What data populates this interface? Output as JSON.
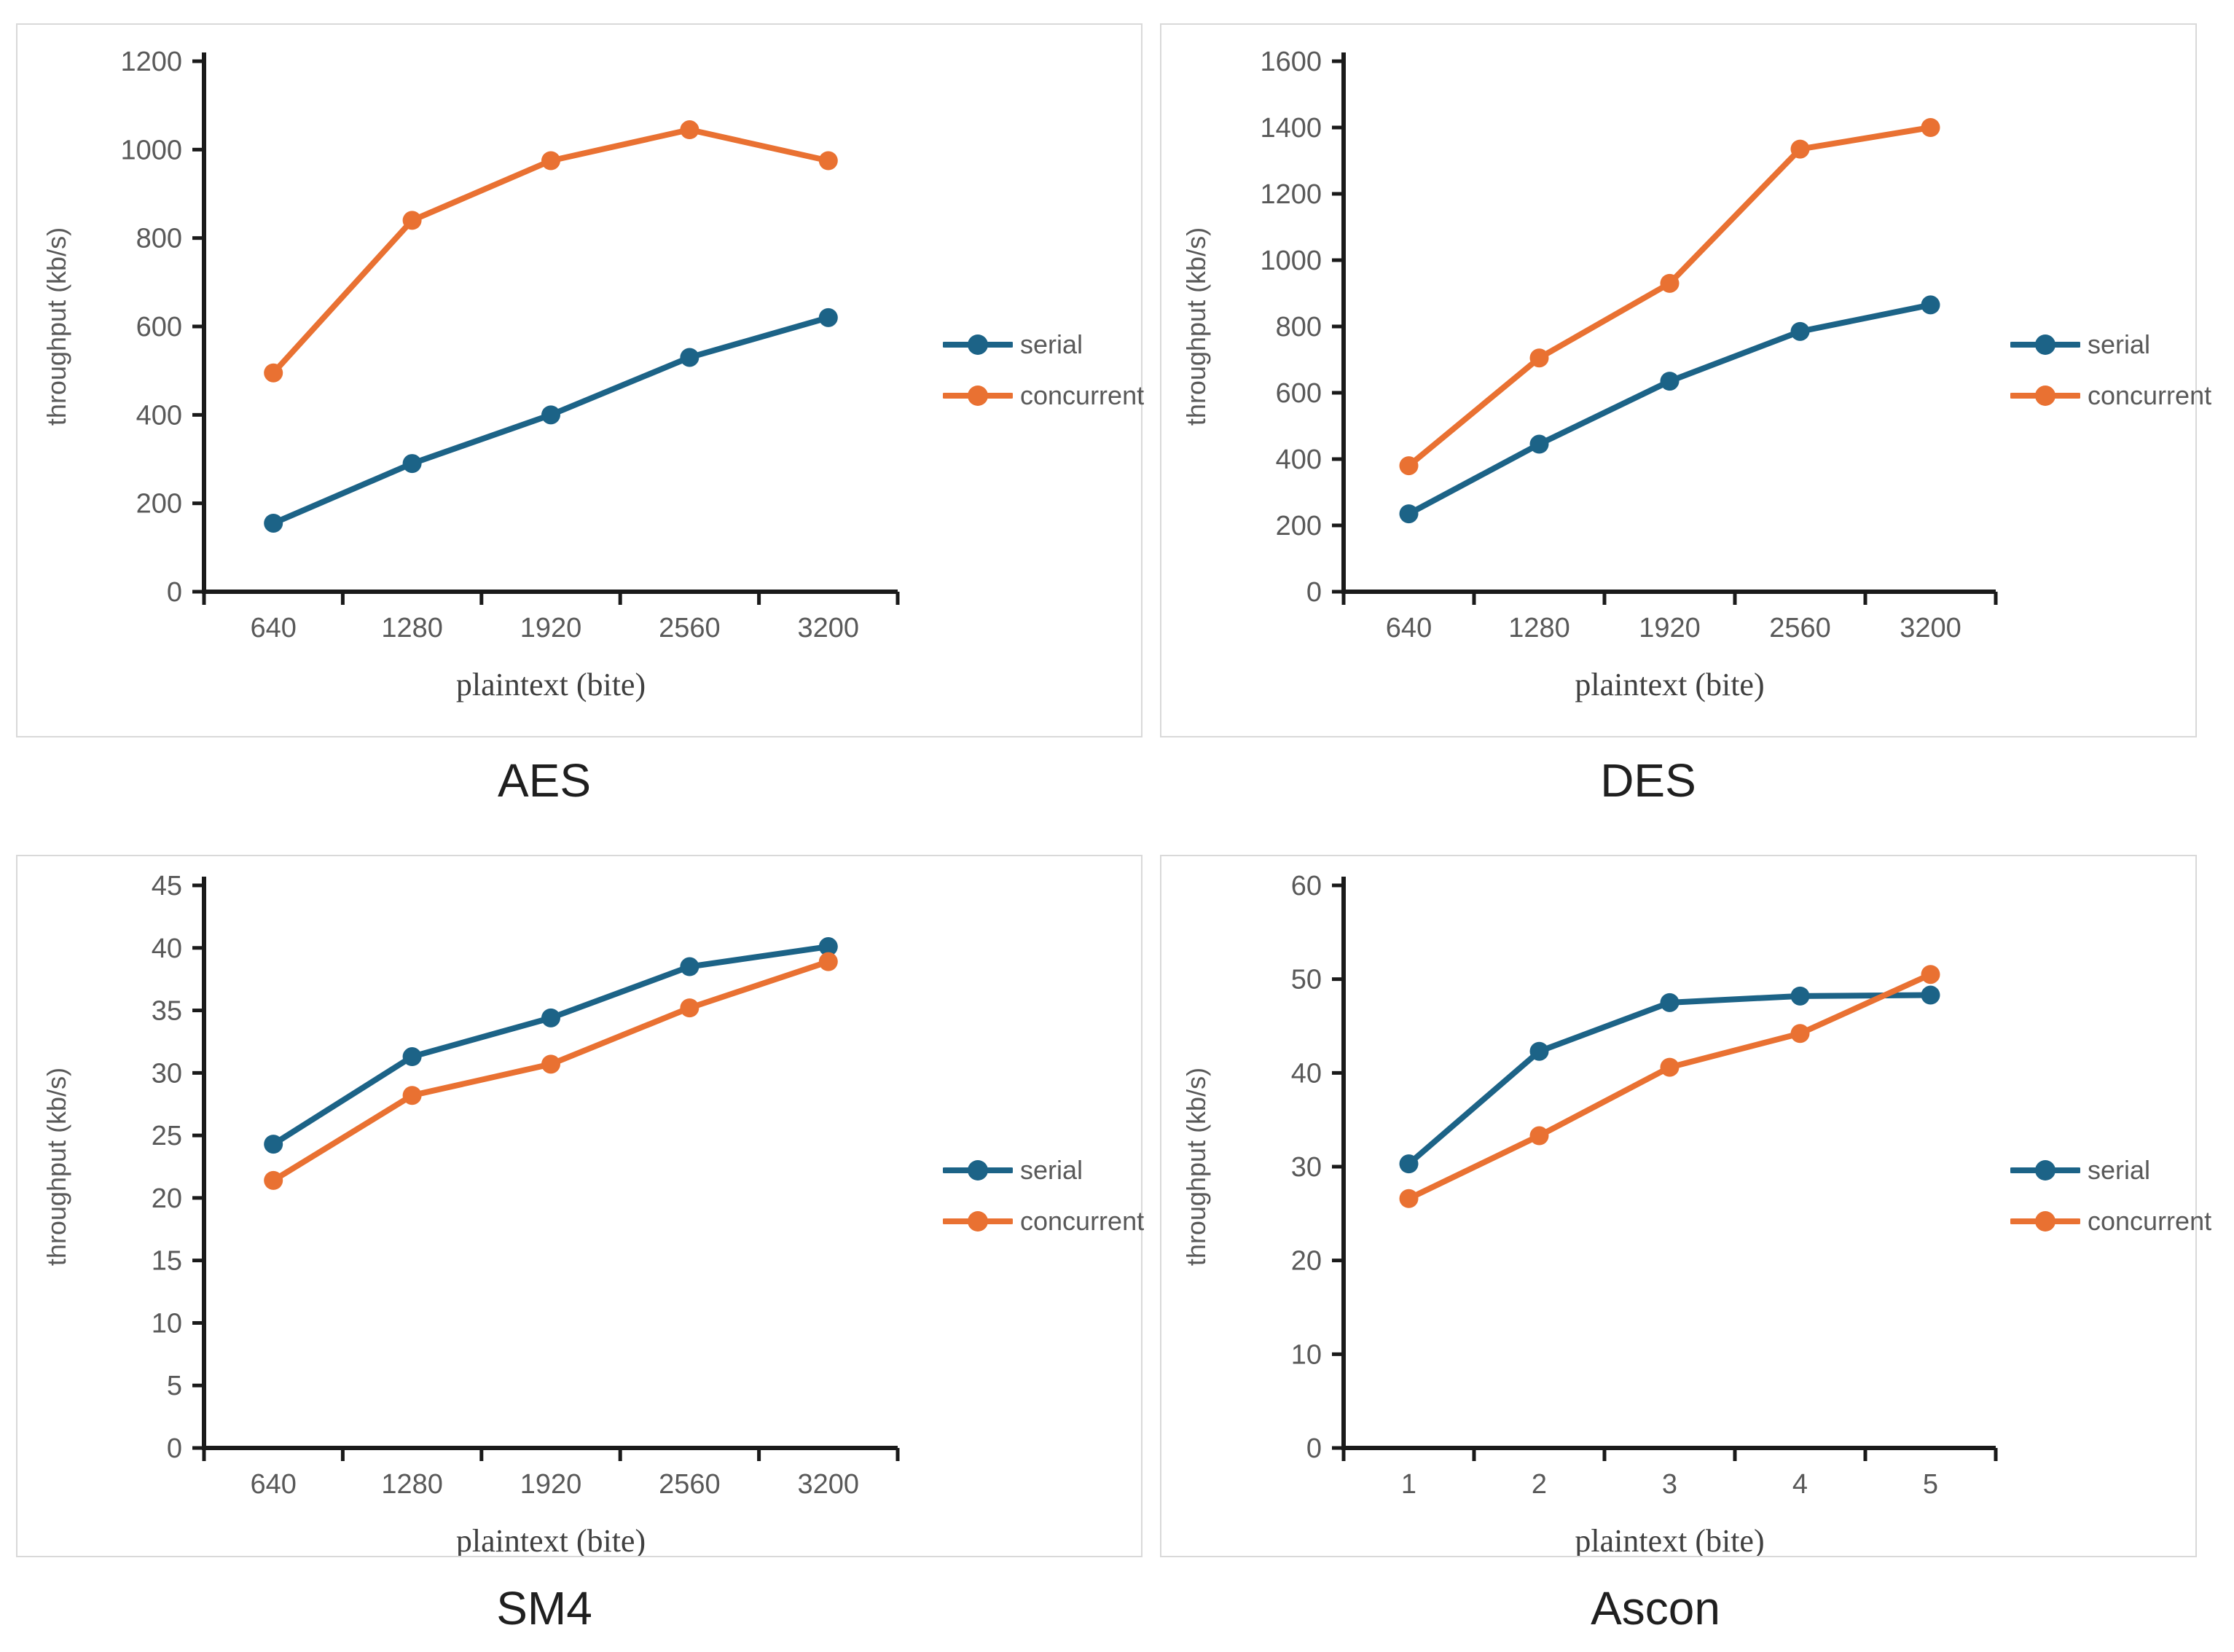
{
  "page": {
    "background": "#ffffff",
    "panel_border_color": "#d9d9d9"
  },
  "colors": {
    "serial": "#1C6387",
    "concurrent": "#E97132",
    "axis": "#1a1a1a",
    "tick_text": "#595959",
    "title_text": "#1f1f1f"
  },
  "chart_data": [
    {
      "type": "line",
      "title": "AES",
      "xlabel": "plaintext (bite)",
      "ylabel": "throughput (kb/s)",
      "categories": [
        "640",
        "1280",
        "1920",
        "2560",
        "3200"
      ],
      "ylim": [
        0,
        1200
      ],
      "ystep": 200,
      "grid": false,
      "legend_position": "right",
      "series": [
        {
          "name": "serial",
          "color": "#1C6387",
          "values": [
            155,
            290,
            400,
            530,
            620
          ]
        },
        {
          "name": "concurrent",
          "color": "#E97132",
          "values": [
            495,
            840,
            975,
            1045,
            975
          ]
        }
      ]
    },
    {
      "type": "line",
      "title": "DES",
      "xlabel": "plaintext (bite)",
      "ylabel": "throughput (kb/s)",
      "categories": [
        "640",
        "1280",
        "1920",
        "2560",
        "3200"
      ],
      "ylim": [
        0,
        1600
      ],
      "ystep": 200,
      "grid": false,
      "legend_position": "right",
      "series": [
        {
          "name": "serial",
          "color": "#1C6387",
          "values": [
            235,
            445,
            635,
            785,
            865
          ]
        },
        {
          "name": "concurrent",
          "color": "#E97132",
          "values": [
            380,
            705,
            930,
            1335,
            1400
          ]
        }
      ]
    },
    {
      "type": "line",
      "title": "SM4",
      "xlabel": "plaintext (bite)",
      "ylabel": "throughput (kb/s)",
      "categories": [
        "640",
        "1280",
        "1920",
        "2560",
        "3200"
      ],
      "ylim": [
        0,
        45
      ],
      "ystep": 5,
      "grid": false,
      "legend_position": "right",
      "series": [
        {
          "name": "serial",
          "color": "#1C6387",
          "values": [
            24.3,
            31.3,
            34.4,
            38.5,
            40.1
          ]
        },
        {
          "name": "concurrent",
          "color": "#E97132",
          "values": [
            21.4,
            28.2,
            30.7,
            35.2,
            38.9
          ]
        }
      ]
    },
    {
      "type": "line",
      "title": "Ascon",
      "xlabel": "plaintext (bite)",
      "ylabel": "throughput (kb/s)",
      "categories": [
        "1",
        "2",
        "3",
        "4",
        "5"
      ],
      "ylim": [
        0,
        60
      ],
      "ystep": 10,
      "grid": false,
      "legend_position": "right",
      "series": [
        {
          "name": "serial",
          "color": "#1C6387",
          "values": [
            30.3,
            42.3,
            47.5,
            48.2,
            48.3
          ]
        },
        {
          "name": "concurrent",
          "color": "#E97132",
          "values": [
            26.6,
            33.3,
            40.6,
            44.2,
            50.5
          ]
        }
      ]
    }
  ]
}
